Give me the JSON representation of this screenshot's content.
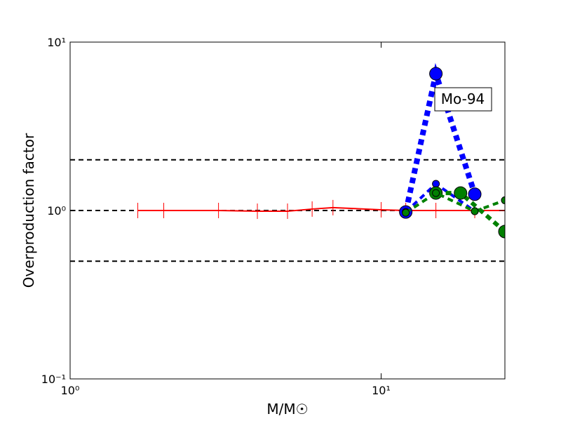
{
  "chart_data": {
    "type": "line",
    "xlabel": "M/M☉",
    "ylabel": "Overproduction factor",
    "annotation": "Mo-94",
    "xlog": true,
    "ylog": true,
    "xlim": [
      1,
      25
    ],
    "ylim": [
      0.1,
      10
    ],
    "xticks": [
      {
        "value": 1,
        "label": "10⁰"
      },
      {
        "value": 10,
        "label": "10¹"
      }
    ],
    "yticks": [
      {
        "value": 0.1,
        "label": "10⁻¹"
      },
      {
        "value": 1,
        "label": "10⁰"
      },
      {
        "value": 10,
        "label": "10¹"
      }
    ],
    "hlines": [
      2,
      1,
      0.5
    ],
    "series": [
      {
        "color": "#ff0000",
        "line_width": 2,
        "dash": "none",
        "marker": "vline",
        "marker_size": 11,
        "x": [
          1.65,
          2,
          3,
          4,
          5,
          6,
          7,
          10,
          12,
          15,
          20,
          25
        ],
        "values": [
          1,
          1,
          1,
          0.99,
          0.99,
          1.02,
          1.04,
          1.01,
          1,
          1,
          1,
          1
        ]
      },
      {
        "color": "#0000ff",
        "line_width": 8,
        "dash": "8 6",
        "marker": "circle",
        "marker_size": 9,
        "x": [
          12,
          15,
          20
        ],
        "values": [
          0.98,
          6.49,
          1.25
        ]
      },
      {
        "color": "#0000ff",
        "line_width": 4,
        "dash": "8 6",
        "marker": "circle",
        "marker_size": 5,
        "x": [
          12,
          15,
          20
        ],
        "values": [
          0.98,
          1.44,
          0.99
        ]
      },
      {
        "color": "#008000",
        "line_width": 6,
        "dash": "8 6",
        "marker": "circle",
        "marker_size": 9,
        "x": [
          15,
          18,
          25
        ],
        "values": [
          1.27,
          1.27,
          0.75
        ]
      },
      {
        "color": "#008000",
        "line_width": 4,
        "dash": "8 6",
        "marker": "circle",
        "marker_size": 5,
        "x": [
          12,
          15,
          20,
          25
        ],
        "values": [
          0.97,
          1.27,
          0.99,
          1.15
        ]
      }
    ]
  }
}
